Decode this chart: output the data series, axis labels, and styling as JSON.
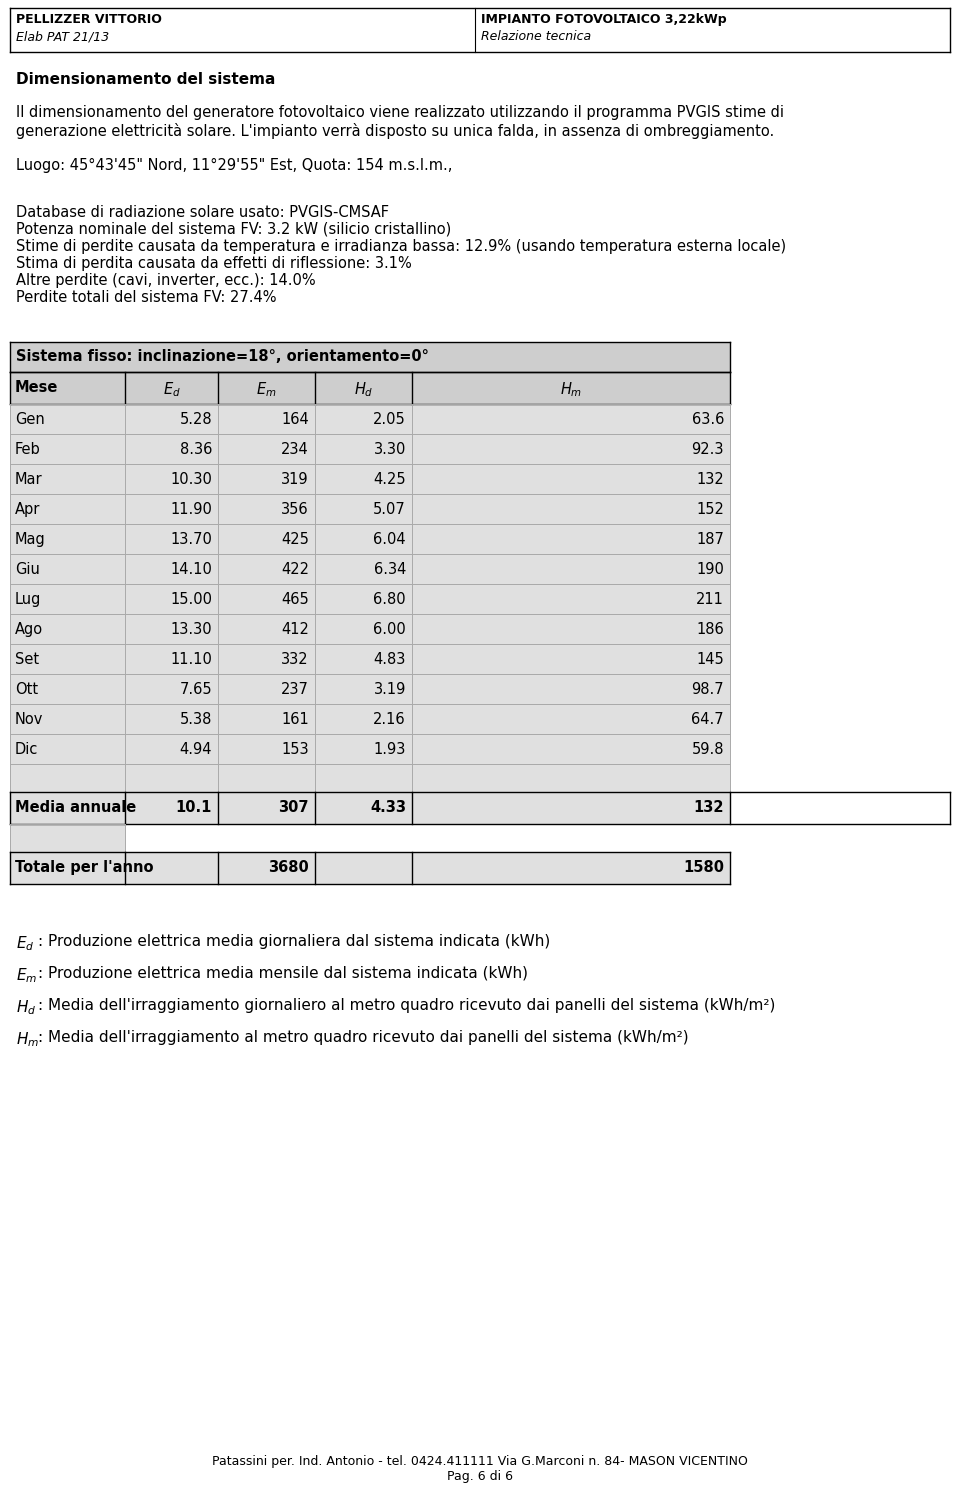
{
  "header_left_line1": "PELLIZZER VITTORIO",
  "header_left_line2": "Elab PAT 21/13",
  "header_right_line1": "IMPIANTO FOTOVOLTAICO 3,22kWp",
  "header_right_line2": "Relazione tecnica",
  "section_title": "Dimensionamento del sistema",
  "para1_line1": "Il dimensionamento del generatore fotovoltaico viene realizzato utilizzando il programma PVGIS stime di",
  "para1_line2": "generazione elettricità solare. L'impianto verrà disposto su unica falda, in assenza di ombreggiamento.",
  "luogo": "Luogo: 45°43'45\" Nord, 11°29'55\" Est, Quota: 154 m.s.l.m.,",
  "db_line1": "Database di radiazione solare usato: PVGIS-CMSAF",
  "db_line2": "Potenza nominale del sistema FV: 3.2 kW (silicio cristallino)",
  "db_line3": "Stime di perdite causata da temperatura e irradianza bassa: 12.9% (usando temperatura esterna locale)",
  "db_line4": "Stima di perdita causata da effetti di riflessione: 3.1%",
  "db_line5": "Altre perdite (cavi, inverter, ecc.): 14.0%",
  "db_line6": "Perdite totali del sistema FV: 27.4%",
  "table_title": "Sistema fisso: inclinazione=18°, orientamento=0°",
  "months": [
    "Gen",
    "Feb",
    "Mar",
    "Apr",
    "Mag",
    "Giu",
    "Lug",
    "Ago",
    "Set",
    "Ott",
    "Nov",
    "Dic"
  ],
  "Ed": [
    "5.28",
    "8.36",
    "10.30",
    "11.90",
    "13.70",
    "14.10",
    "15.00",
    "13.30",
    "11.10",
    "7.65",
    "5.38",
    "4.94"
  ],
  "Em": [
    "164",
    "234",
    "319",
    "356",
    "425",
    "422",
    "465",
    "412",
    "332",
    "237",
    "161",
    "153"
  ],
  "Hd": [
    "2.05",
    "3.30",
    "4.25",
    "5.07",
    "6.04",
    "6.34",
    "6.80",
    "6.00",
    "4.83",
    "3.19",
    "2.16",
    "1.93"
  ],
  "Hm": [
    "63.6",
    "92.3",
    "132",
    "152",
    "187",
    "190",
    "211",
    "186",
    "145",
    "98.7",
    "64.7",
    "59.8"
  ],
  "bg_color": "#ffffff",
  "table_header_bg": "#cecece",
  "table_row_bg_dark": "#e0e0e0",
  "table_row_bg_light": "#ebebeb",
  "table_border_color": "#aaaaaa",
  "page_footer_line1": "Patassini per. Ind. Antonio - tel. 0424.411111 Via G.Marconi n. 84- MASON VICENTINO",
  "page_footer_line2": "Pag. 6 di 6"
}
